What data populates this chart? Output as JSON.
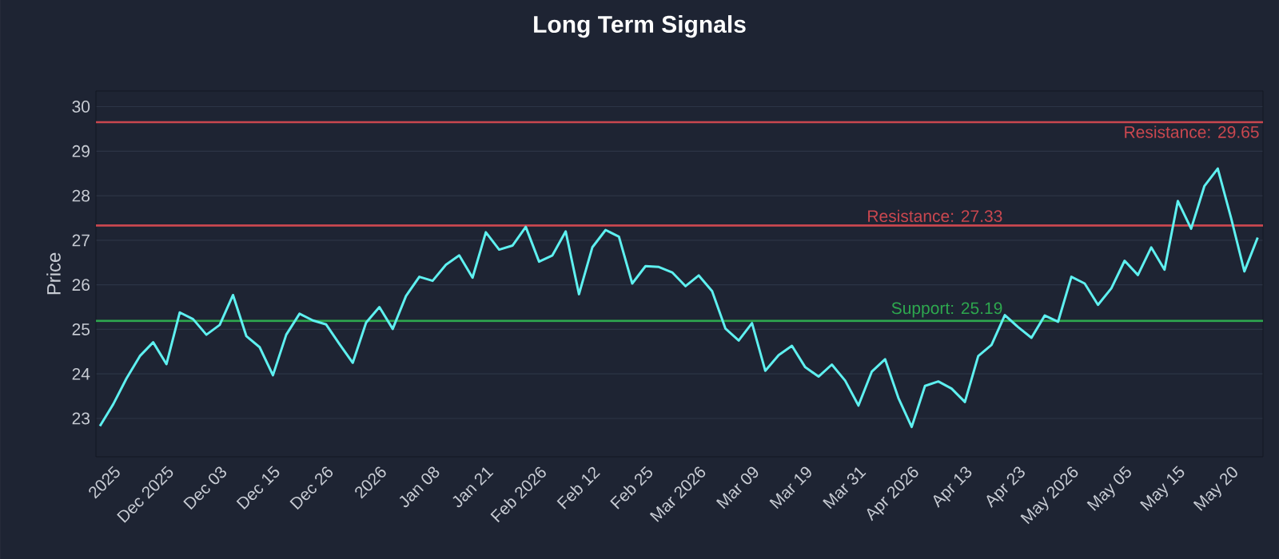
{
  "chart_data": {
    "type": "line",
    "title": "Long Term Signals",
    "ylabel": "Price",
    "categories": [
      null,
      "2025",
      null,
      null,
      null,
      "Dec 2025",
      null,
      null,
      null,
      "Dec 03",
      null,
      null,
      null,
      "Dec 15",
      null,
      null,
      null,
      "Dec 26",
      null,
      null,
      null,
      "2026",
      null,
      null,
      null,
      "Jan 08",
      null,
      null,
      null,
      "Jan 21",
      null,
      null,
      null,
      "Feb 2026",
      null,
      null,
      null,
      "Feb 12",
      null,
      null,
      null,
      "Feb 25",
      null,
      null,
      null,
      "Mar 2026",
      null,
      null,
      null,
      "Mar 09",
      null,
      null,
      null,
      "Mar 19",
      null,
      null,
      null,
      "Mar 31",
      null,
      null,
      null,
      "Apr 2026",
      null,
      null,
      null,
      "Apr 13",
      null,
      null,
      null,
      "Apr 23",
      null,
      null,
      null,
      "May 2026",
      null,
      null,
      null,
      "May 05",
      null,
      null,
      null,
      "May 15",
      null,
      null,
      null,
      "May 20",
      null,
      null
    ],
    "series": [
      {
        "color": "#5ef0f0",
        "values": [
          22.83,
          23.32,
          23.9,
          24.4,
          24.71,
          24.22,
          25.38,
          25.23,
          24.88,
          25.1,
          25.77,
          24.85,
          24.6,
          23.97,
          24.88,
          25.35,
          25.2,
          25.11,
          24.67,
          24.25,
          25.15,
          25.5,
          25.01,
          25.75,
          26.18,
          26.09,
          26.45,
          26.66,
          26.16,
          27.18,
          26.79,
          26.88,
          27.3,
          26.52,
          26.66,
          27.2,
          25.79,
          26.84,
          27.23,
          27.08,
          26.03,
          26.42,
          26.4,
          26.28,
          25.97,
          26.21,
          25.86,
          25.02,
          24.75,
          25.14,
          24.07,
          24.42,
          24.63,
          24.15,
          23.94,
          24.21,
          23.85,
          23.29,
          24.05,
          24.33,
          23.46,
          22.81,
          23.73,
          23.83,
          23.67,
          23.37,
          24.4,
          24.65,
          25.32,
          25.05,
          24.81,
          25.31,
          25.17,
          26.18,
          26.03,
          25.55,
          25.92,
          26.54,
          26.22,
          26.84,
          26.34,
          27.88,
          27.26,
          28.22,
          28.61,
          27.5,
          26.3,
          27.06
        ]
      }
    ],
    "ylim": [
      22.14,
      30.35
    ],
    "yticks": [
      23,
      24,
      25,
      26,
      27,
      28,
      29,
      30
    ],
    "grid": "y",
    "ref_lines": [
      {
        "axis": "y",
        "value": 29.65,
        "label": "Resistance: 29.65",
        "color": "#c9474f"
      },
      {
        "axis": "y",
        "value": 27.33,
        "label": "Resistance: 27.33",
        "color": "#c9474f"
      },
      {
        "axis": "y",
        "value": 25.19,
        "label": "Support: 25.19",
        "color": "#2ea84f"
      }
    ]
  }
}
